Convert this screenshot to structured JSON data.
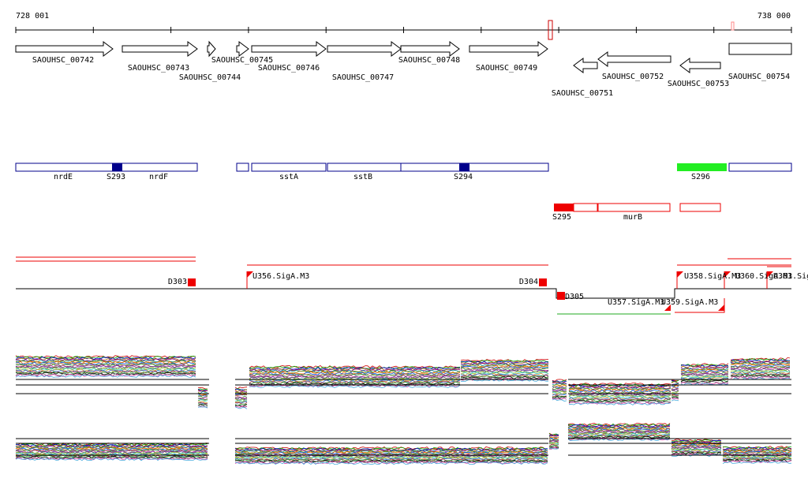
{
  "ruler": {
    "start": "728 001",
    "end": "738 000"
  },
  "genes": [
    {
      "label": "SAOUHSC_00742"
    },
    {
      "label": "SAOUHSC_00743"
    },
    {
      "label": "SAOUHSC_00744"
    },
    {
      "label": "SAOUHSC_00745"
    },
    {
      "label": "SAOUHSC_00746"
    },
    {
      "label": "SAOUHSC_00747"
    },
    {
      "label": "SAOUHSC_00748"
    },
    {
      "label": "SAOUHSC_00749"
    },
    {
      "label": "SAOUHSC_00751"
    },
    {
      "label": "SAOUHSC_00752"
    },
    {
      "label": "SAOUHSC_00753"
    },
    {
      "label": "SAOUHSC_00754"
    }
  ],
  "features": [
    {
      "label": "nrdE"
    },
    {
      "label": "S293"
    },
    {
      "label": "nrdF"
    },
    {
      "label": "sstA"
    },
    {
      "label": "sstB"
    },
    {
      "label": "S294"
    },
    {
      "label": "S296"
    },
    {
      "label": "S295"
    },
    {
      "label": "murB"
    }
  ],
  "segments": [
    {
      "label": "D303"
    },
    {
      "label": "U356.SigA.M3"
    },
    {
      "label": "D304"
    },
    {
      "label": "D305"
    },
    {
      "label": "U357.SigA.M3"
    },
    {
      "label": "U359.SigA.M3"
    },
    {
      "label": "U358.SigA.M3"
    },
    {
      "label": "U360.SigA.M3"
    },
    {
      "label": "U361.Sig"
    }
  ]
}
